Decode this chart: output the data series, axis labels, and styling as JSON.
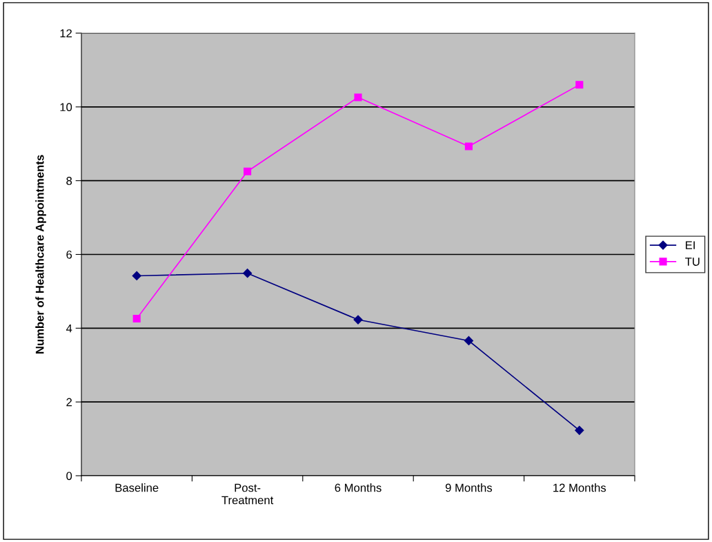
{
  "chart_data": {
    "type": "line",
    "ylabel": "Number of Healthcare Appointments",
    "categories": [
      "Baseline",
      "Post-\nTreatment",
      "6 Months",
      "9 Months",
      "12 Months"
    ],
    "series": [
      {
        "name": "EI",
        "color": "#000080",
        "marker": "diamond",
        "values": [
          5.42,
          5.49,
          4.23,
          3.66,
          1.23
        ]
      },
      {
        "name": "TU",
        "color": "#ff00ff",
        "marker": "square",
        "values": [
          4.26,
          8.25,
          10.26,
          8.93,
          10.6
        ]
      }
    ],
    "ylim": [
      0,
      12
    ],
    "yticks": [
      0,
      2,
      4,
      6,
      8,
      10,
      12
    ],
    "grid": "y",
    "legend": "right"
  }
}
